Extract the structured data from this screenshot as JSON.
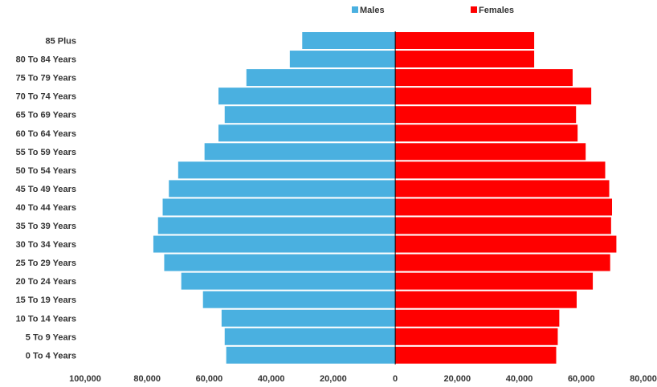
{
  "chart_data": {
    "type": "bar",
    "orientation": "horizontal",
    "layout": "population-pyramid",
    "categories": [
      "85 Plus",
      "80 To 84 Years",
      "75 To 79 Years",
      "70 To 74 Years",
      "65 To 69 Years",
      "60 To 64 Years",
      "55 To 59 Years",
      "50 To 54 Years",
      "45 To 49 Years",
      "40 To 44 Years",
      "35 To 39 Years",
      "30 To 34 Years",
      "25 To 29 Years",
      "20 To 24 Years",
      "15 To 19 Years",
      "10 To 14 Years",
      "5 To 9 Years",
      "0 To 4 Years"
    ],
    "series": [
      {
        "name": "Males",
        "color": "#4ab0e0",
        "values": [
          30000,
          34000,
          48000,
          57000,
          55000,
          57000,
          61500,
          70000,
          73000,
          75000,
          76500,
          78000,
          74500,
          69000,
          62000,
          56000,
          55000,
          54500
        ]
      },
      {
        "name": "Females",
        "color": "#ff0000",
        "values": [
          44800,
          44800,
          57200,
          63200,
          58300,
          58800,
          61400,
          67700,
          69000,
          69900,
          69600,
          71300,
          69300,
          63700,
          58500,
          52900,
          52400,
          51900
        ]
      }
    ],
    "xlim": [
      -100000,
      80000
    ],
    "xticks": [
      -100000,
      -80000,
      -60000,
      -40000,
      -20000,
      0,
      20000,
      40000,
      60000,
      80000
    ],
    "xtick_labels": [
      "100,000",
      "80,000",
      "60,000",
      "40,000",
      "20,000",
      "0",
      "20,000",
      "40,000",
      "60,000",
      "80,000"
    ],
    "legend": {
      "position": "top",
      "entries": [
        "Males",
        "Females"
      ]
    },
    "grid": false,
    "title": "",
    "xlabel": "",
    "ylabel": ""
  }
}
